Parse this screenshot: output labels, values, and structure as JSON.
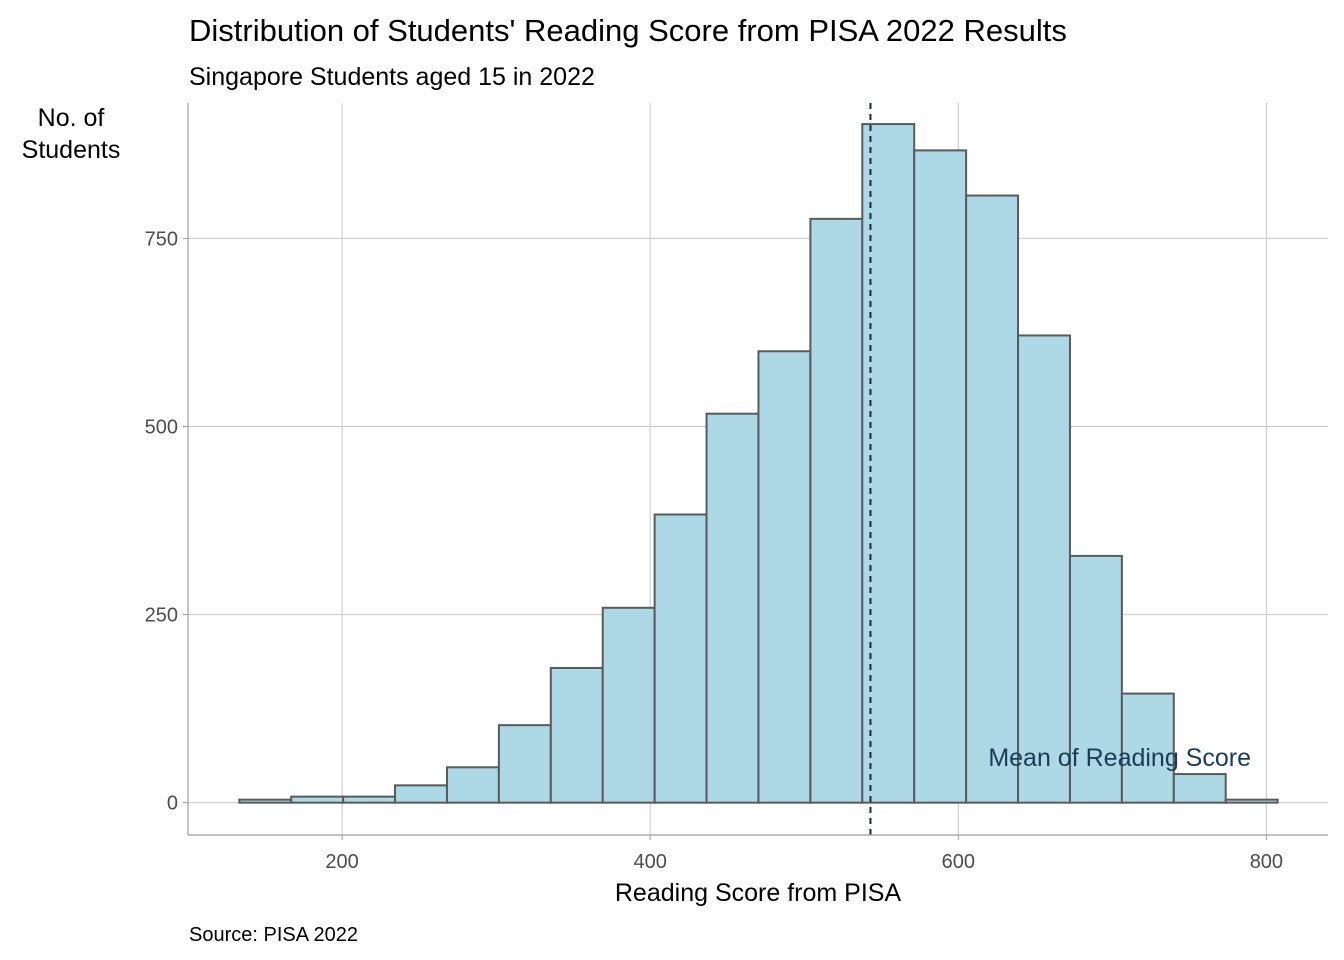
{
  "chart_data": {
    "type": "bar",
    "title": "Distribution of Students' Reading Score from PISA 2022 Results",
    "subtitle": "Singapore Students aged 15 in 2022",
    "xlabel": "Reading Score from PISA",
    "ylabel_lines": [
      "No. of",
      "Students"
    ],
    "caption": "Source: PISA 2022",
    "xlim": [
      100,
      840
    ],
    "ylim": [
      -43,
      930
    ],
    "xticks": [
      200,
      400,
      600,
      800
    ],
    "yticks": [
      0,
      250,
      500,
      750
    ],
    "grid": true,
    "bins": [
      {
        "start": 133.3,
        "end": 167.0,
        "count": 4
      },
      {
        "start": 167.0,
        "end": 200.7,
        "count": 8
      },
      {
        "start": 200.7,
        "end": 234.4,
        "count": 8
      },
      {
        "start": 234.4,
        "end": 268.1,
        "count": 23
      },
      {
        "start": 268.1,
        "end": 301.8,
        "count": 47
      },
      {
        "start": 301.8,
        "end": 335.5,
        "count": 103
      },
      {
        "start": 335.5,
        "end": 369.2,
        "count": 179
      },
      {
        "start": 369.2,
        "end": 402.9,
        "count": 259
      },
      {
        "start": 402.9,
        "end": 436.6,
        "count": 383
      },
      {
        "start": 436.6,
        "end": 470.3,
        "count": 517
      },
      {
        "start": 470.3,
        "end": 504.0,
        "count": 600
      },
      {
        "start": 504.0,
        "end": 537.7,
        "count": 776
      },
      {
        "start": 537.7,
        "end": 571.4,
        "count": 902
      },
      {
        "start": 571.4,
        "end": 605.1,
        "count": 867
      },
      {
        "start": 605.1,
        "end": 638.8,
        "count": 807
      },
      {
        "start": 638.8,
        "end": 672.5,
        "count": 621
      },
      {
        "start": 672.5,
        "end": 706.2,
        "count": 328
      },
      {
        "start": 706.2,
        "end": 739.9,
        "count": 145
      },
      {
        "start": 739.9,
        "end": 773.6,
        "count": 38
      },
      {
        "start": 773.6,
        "end": 807.3,
        "count": 4
      }
    ],
    "mean_line": {
      "x": 543,
      "label": "Mean of Reading Score"
    }
  },
  "colors": {
    "bar_fill": "#add8e6",
    "bar_stroke": "#5a5a5a",
    "grid": "#c8c8c8",
    "axis": "#9e9e9e",
    "mean_line": "#1a2a3a",
    "mean_label": "#1c3b57",
    "title_text": "#000000",
    "tick_text": "#4d4d4d"
  }
}
